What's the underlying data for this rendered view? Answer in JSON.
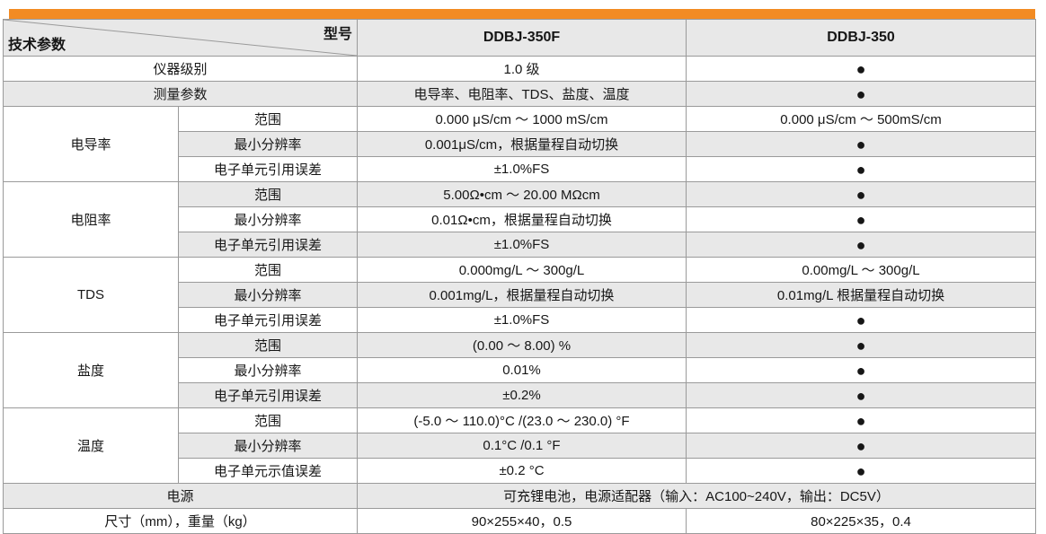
{
  "colors": {
    "accent_orange": "#F28B23",
    "row_gray": "#E8E8E8",
    "border_gray": "#9A9A9A"
  },
  "header": {
    "corner_top": "型号",
    "corner_bottom": "技术参数",
    "columns": [
      "DDBJ-350F",
      "DDBJ-350"
    ]
  },
  "table": {
    "rows": [
      {
        "cells": [
          {
            "t": "仪器级别",
            "cs": 2
          },
          {
            "t": "1.0 级"
          },
          {
            "t": "●",
            "dot": true
          }
        ]
      },
      {
        "cells": [
          {
            "t": "测量参数",
            "cs": 2
          },
          {
            "t": "电导率、电阻率、TDS、盐度、温度"
          },
          {
            "t": "●",
            "dot": true
          }
        ]
      },
      {
        "cells": [
          {
            "t": "电导率",
            "rs": 3
          },
          {
            "t": "范围"
          },
          {
            "t": "0.000 μS/cm ～ 1000 mS/cm"
          },
          {
            "t": "0.000 μS/cm ～ 500mS/cm"
          }
        ]
      },
      {
        "cells": [
          {
            "t": "最小分辨率"
          },
          {
            "t": "0.001μS/cm，根据量程自动切换"
          },
          {
            "t": "●",
            "dot": true
          }
        ]
      },
      {
        "cells": [
          {
            "t": "电子单元引用误差"
          },
          {
            "t": "±1.0%FS"
          },
          {
            "t": "●",
            "dot": true
          }
        ]
      },
      {
        "cells": [
          {
            "t": "电阻率",
            "rs": 3
          },
          {
            "t": "范围"
          },
          {
            "t": "5.00Ω•cm ～ 20.00 MΩcm"
          },
          {
            "t": "●",
            "dot": true
          }
        ]
      },
      {
        "cells": [
          {
            "t": "最小分辨率"
          },
          {
            "t": "0.01Ω•cm，根据量程自动切换"
          },
          {
            "t": "●",
            "dot": true
          }
        ]
      },
      {
        "cells": [
          {
            "t": "电子单元引用误差"
          },
          {
            "t": "±1.0%FS"
          },
          {
            "t": "●",
            "dot": true
          }
        ]
      },
      {
        "cells": [
          {
            "t": "TDS",
            "rs": 3
          },
          {
            "t": "范围"
          },
          {
            "t": "0.000mg/L ～ 300g/L"
          },
          {
            "t": "0.00mg/L ～ 300g/L"
          }
        ]
      },
      {
        "cells": [
          {
            "t": "最小分辨率"
          },
          {
            "t": "0.001mg/L，根据量程自动切换"
          },
          {
            "t": "0.01mg/L 根据量程自动切换"
          }
        ]
      },
      {
        "cells": [
          {
            "t": "电子单元引用误差"
          },
          {
            "t": "±1.0%FS"
          },
          {
            "t": "●",
            "dot": true
          }
        ]
      },
      {
        "cells": [
          {
            "t": "盐度",
            "rs": 3
          },
          {
            "t": "范围"
          },
          {
            "t": "(0.00 ～ 8.00) %"
          },
          {
            "t": "●",
            "dot": true
          }
        ]
      },
      {
        "cells": [
          {
            "t": "最小分辨率"
          },
          {
            "t": "0.01%"
          },
          {
            "t": "●",
            "dot": true
          }
        ]
      },
      {
        "cells": [
          {
            "t": "电子单元引用误差"
          },
          {
            "t": "±0.2%"
          },
          {
            "t": "●",
            "dot": true
          }
        ]
      },
      {
        "cells": [
          {
            "t": "温度",
            "rs": 3
          },
          {
            "t": "范围"
          },
          {
            "t": "(-5.0 ～ 110.0)°C /(23.0 ～ 230.0) °F"
          },
          {
            "t": "●",
            "dot": true
          }
        ]
      },
      {
        "cells": [
          {
            "t": "最小分辨率"
          },
          {
            "t": "0.1°C /0.1 °F"
          },
          {
            "t": "●",
            "dot": true
          }
        ]
      },
      {
        "cells": [
          {
            "t": "电子单元示值误差"
          },
          {
            "t": "±0.2 °C"
          },
          {
            "t": "●",
            "dot": true
          }
        ]
      },
      {
        "cells": [
          {
            "t": "电源",
            "cs": 2
          },
          {
            "t": "可充锂电池，电源适配器（输入：AC100~240V，输出：DC5V）",
            "cs": 2
          }
        ]
      },
      {
        "cells": [
          {
            "t": "尺寸（mm），重量（kg）",
            "cs": 2
          },
          {
            "t": "90×255×40，0.5"
          },
          {
            "t": "80×225×35，0.4"
          }
        ]
      }
    ]
  }
}
